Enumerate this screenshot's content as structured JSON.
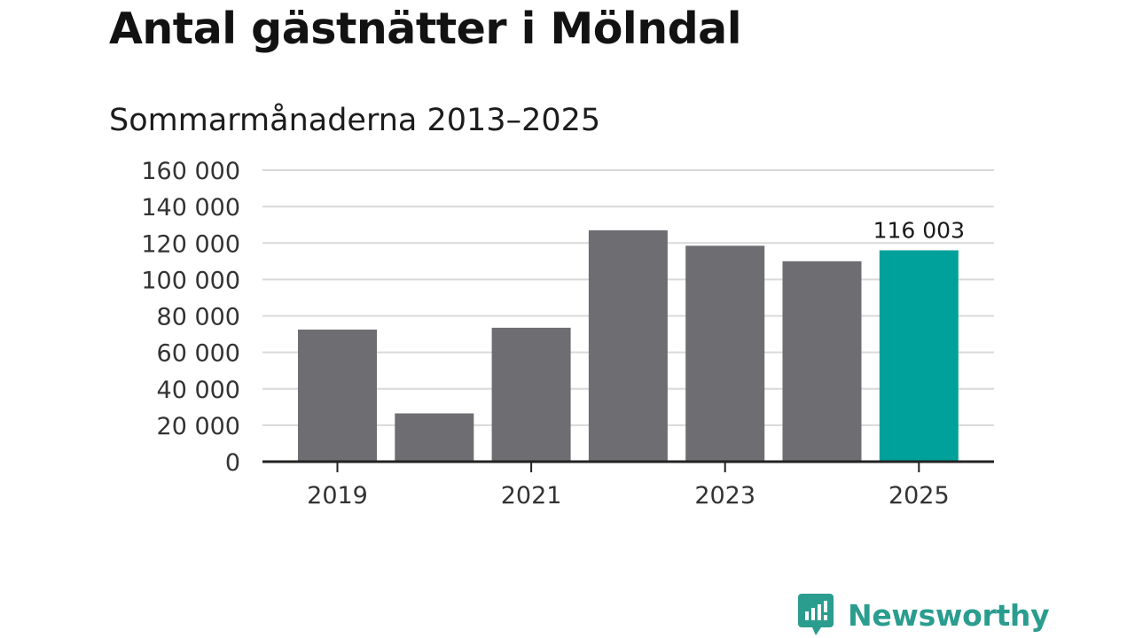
{
  "chart_data": {
    "type": "bar",
    "title": "Antal gästnätter i Mölndal",
    "subtitle": "Sommarmånaderna 2013–2025",
    "categories": [
      "2019",
      "2020",
      "2021",
      "2022",
      "2023",
      "2024",
      "2025"
    ],
    "values": [
      72500,
      26500,
      73500,
      127000,
      118500,
      110000,
      116003
    ],
    "highlight_index": 6,
    "highlight_label": "116 003",
    "ylim": [
      0,
      160000
    ],
    "yticks": [
      0,
      20000,
      40000,
      60000,
      80000,
      100000,
      120000,
      140000,
      160000
    ],
    "ytick_labels": [
      "0",
      "20 000",
      "40 000",
      "60 000",
      "80 000",
      "100 000",
      "120 000",
      "140 000",
      "160 000"
    ],
    "xtick_labels": [
      "2019",
      "2021",
      "2023",
      "2025"
    ],
    "xtick_indices": [
      0,
      2,
      4,
      6
    ],
    "grid": true,
    "colors": {
      "bar": "#6e6d72",
      "highlight": "#00a19a",
      "grid": "#d9d9d9",
      "axis": "#222222",
      "text": "#333333"
    }
  },
  "brand": {
    "name": "Newsworthy",
    "icon": "newsworthy-logo-icon",
    "color": "#2a9d8f"
  }
}
